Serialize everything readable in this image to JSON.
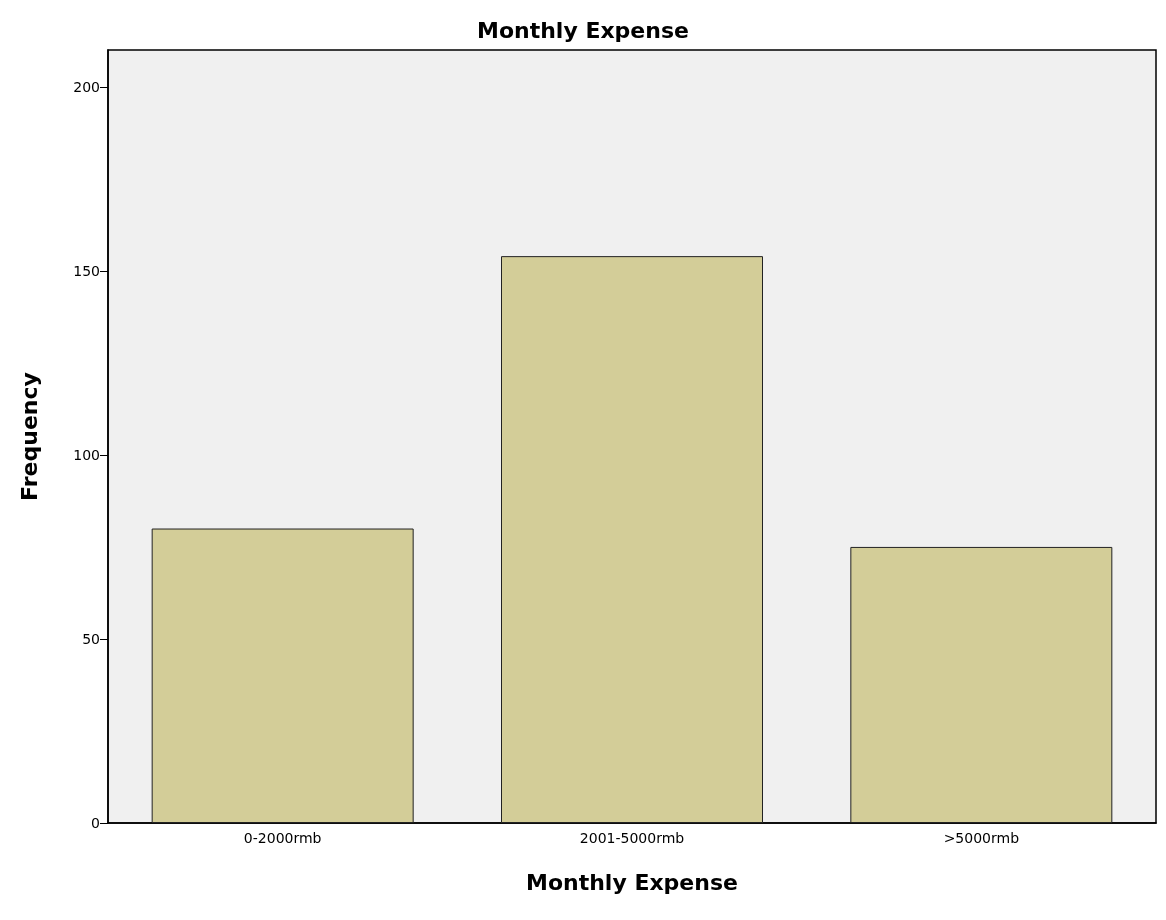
{
  "chart_data": {
    "type": "bar",
    "title": "Monthly Expense",
    "xlabel": "Monthly Expense",
    "ylabel": "Frequency",
    "categories": [
      "0-2000rmb",
      "2001-5000rmb",
      ">5000rmb"
    ],
    "values": [
      80,
      154,
      75
    ],
    "color": "#d3cd98",
    "ylim": [
      0,
      210
    ],
    "yticks": [
      0,
      50,
      100,
      150,
      200
    ],
    "grid": false
  }
}
